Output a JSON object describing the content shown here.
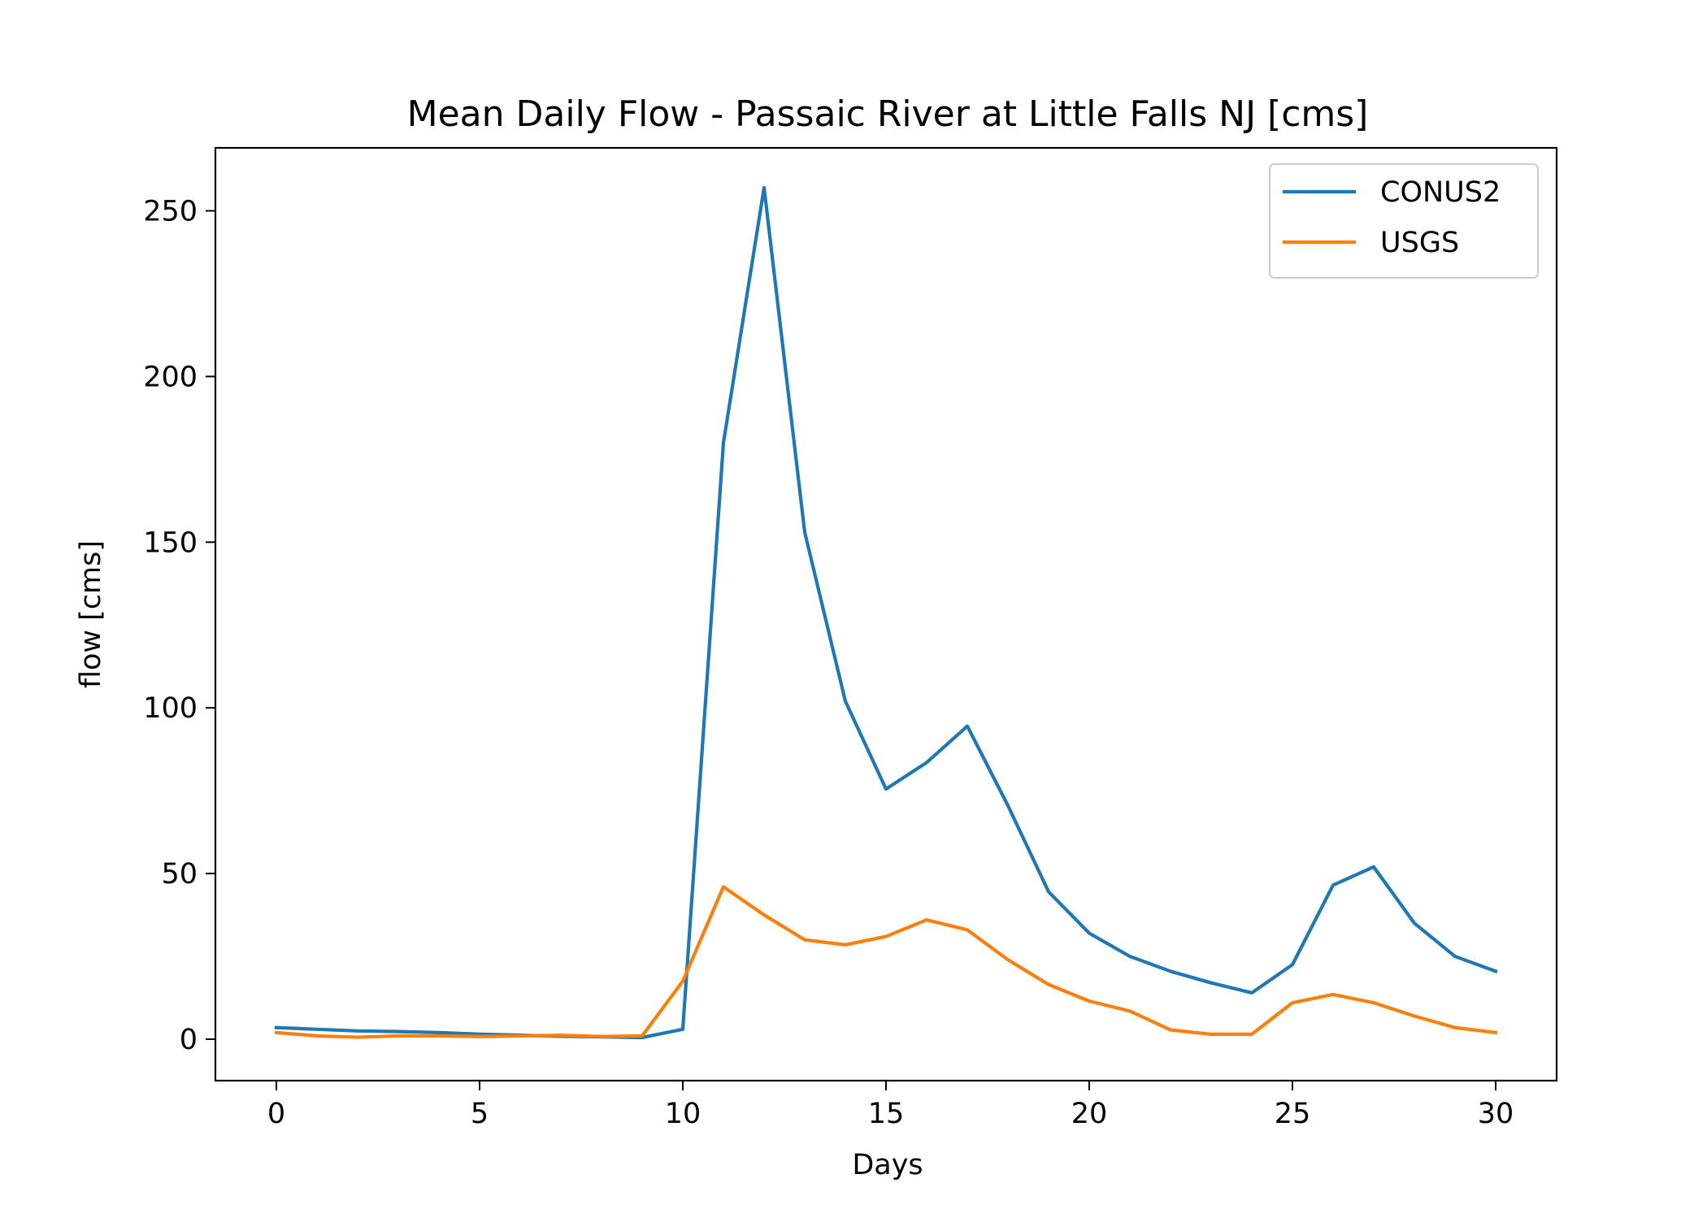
{
  "chart_data": {
    "type": "line",
    "title": "Mean Daily Flow - Passaic River at Little Falls NJ [cms]",
    "xlabel": "Days",
    "ylabel": "flow [cms]",
    "xlim": [
      -1.5,
      31.5
    ],
    "ylim": [
      -12.5,
      269
    ],
    "x_ticks": [
      0,
      5,
      10,
      15,
      20,
      25,
      30
    ],
    "y_ticks": [
      0,
      50,
      100,
      150,
      200,
      250
    ],
    "grid": false,
    "legend_position": "top-right",
    "x": [
      0,
      1,
      2,
      3,
      4,
      5,
      6,
      7,
      8,
      9,
      10,
      11,
      12,
      13,
      14,
      15,
      16,
      17,
      18,
      19,
      20,
      21,
      22,
      23,
      24,
      25,
      26,
      27,
      28,
      29,
      30
    ],
    "series": [
      {
        "name": "CONUS2",
        "color": "#1f77b4",
        "values": [
          3.5,
          3,
          2.5,
          2.3,
          2,
          1.5,
          1.2,
          0.9,
          0.7,
          0.5,
          3,
          180,
          257,
          153,
          102,
          75.5,
          83.5,
          94.5,
          70.5,
          44.5,
          32,
          25,
          20.5,
          17,
          14,
          22.5,
          46.5,
          52,
          35,
          25,
          20.5
        ]
      },
      {
        "name": "USGS",
        "color": "#ff7f0e",
        "values": [
          2,
          1,
          0.6,
          1,
          1,
          0.8,
          1,
          1.2,
          0.8,
          1,
          17.5,
          46,
          37.5,
          30,
          28.5,
          31,
          36,
          33,
          24,
          16.5,
          11.5,
          8.5,
          2.8,
          1.5,
          1.5,
          11,
          13.5,
          11,
          7,
          3.5,
          2
        ]
      }
    ]
  }
}
